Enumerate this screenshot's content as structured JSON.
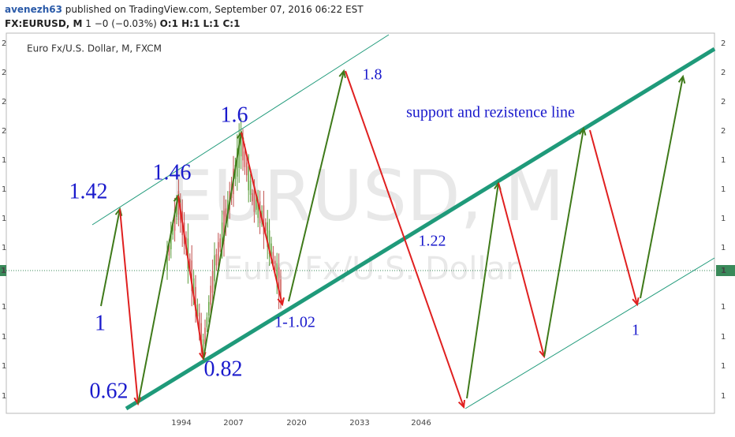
{
  "header": {
    "user": "avenezh63",
    "published": " published on TradingView.com, September 07, 2016 06:22 EST",
    "symbol": "FX:EURUSD, M",
    "change": " 1 −0 (−0.03%) ",
    "ohlc": "O:1 H:1 L:1 C:1"
  },
  "chart": {
    "legend": "Euro Fx/U.S. Dollar, M, FXCM",
    "watermark": "EURUSD, M",
    "watermark_sub": "Euro Fx/U.S. Dollar",
    "left_axis": [
      "2",
      "2",
      "2",
      "2",
      "1",
      "1",
      "1",
      "1",
      "1",
      "1",
      "1",
      "1"
    ],
    "right_axis": [
      "2",
      "2",
      "2",
      "2",
      "1",
      "1",
      "1",
      "1",
      "1",
      "1",
      "1",
      "1"
    ],
    "price_tag": "1",
    "x_axis": [
      "1994",
      "2007",
      "2020",
      "2033",
      "2046"
    ],
    "annotations": [
      "1.42",
      "1.46",
      "1.6",
      "1.8",
      "support and rezistence line",
      "1.22",
      "1-1.02",
      "1",
      "0.82",
      "0.62",
      "1"
    ]
  }
}
